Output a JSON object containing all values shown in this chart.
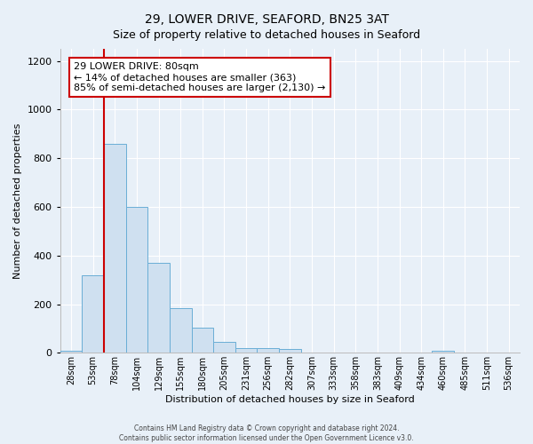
{
  "title": "29, LOWER DRIVE, SEAFORD, BN25 3AT",
  "subtitle": "Size of property relative to detached houses in Seaford",
  "xlabel": "Distribution of detached houses by size in Seaford",
  "ylabel": "Number of detached properties",
  "bin_labels": [
    "28sqm",
    "53sqm",
    "78sqm",
    "104sqm",
    "129sqm",
    "155sqm",
    "180sqm",
    "205sqm",
    "231sqm",
    "256sqm",
    "282sqm",
    "307sqm",
    "333sqm",
    "358sqm",
    "383sqm",
    "409sqm",
    "434sqm",
    "460sqm",
    "485sqm",
    "511sqm",
    "536sqm"
  ],
  "bar_values": [
    10,
    320,
    860,
    600,
    370,
    185,
    105,
    45,
    20,
    20,
    15,
    0,
    0,
    0,
    0,
    0,
    0,
    10,
    0,
    0,
    0
  ],
  "bar_color": "#cfe0f0",
  "bar_edge_color": "#6aaed6",
  "property_line_color": "#cc0000",
  "property_line_bin": 2,
  "ylim": [
    0,
    1250
  ],
  "yticks": [
    0,
    200,
    400,
    600,
    800,
    1000,
    1200
  ],
  "annotation_title": "29 LOWER DRIVE: 80sqm",
  "annotation_line1": "← 14% of detached houses are smaller (363)",
  "annotation_line2": "85% of semi-detached houses are larger (2,130) →",
  "annotation_box_color": "#ffffff",
  "annotation_box_edge": "#cc0000",
  "footer1": "Contains HM Land Registry data © Crown copyright and database right 2024.",
  "footer2": "Contains public sector information licensed under the Open Government Licence v3.0.",
  "background_color": "#e8f0f8",
  "plot_background": "#e8f0f8",
  "grid_color": "#ffffff",
  "title_fontsize": 10,
  "subtitle_fontsize": 9,
  "bar_width": 1.0
}
